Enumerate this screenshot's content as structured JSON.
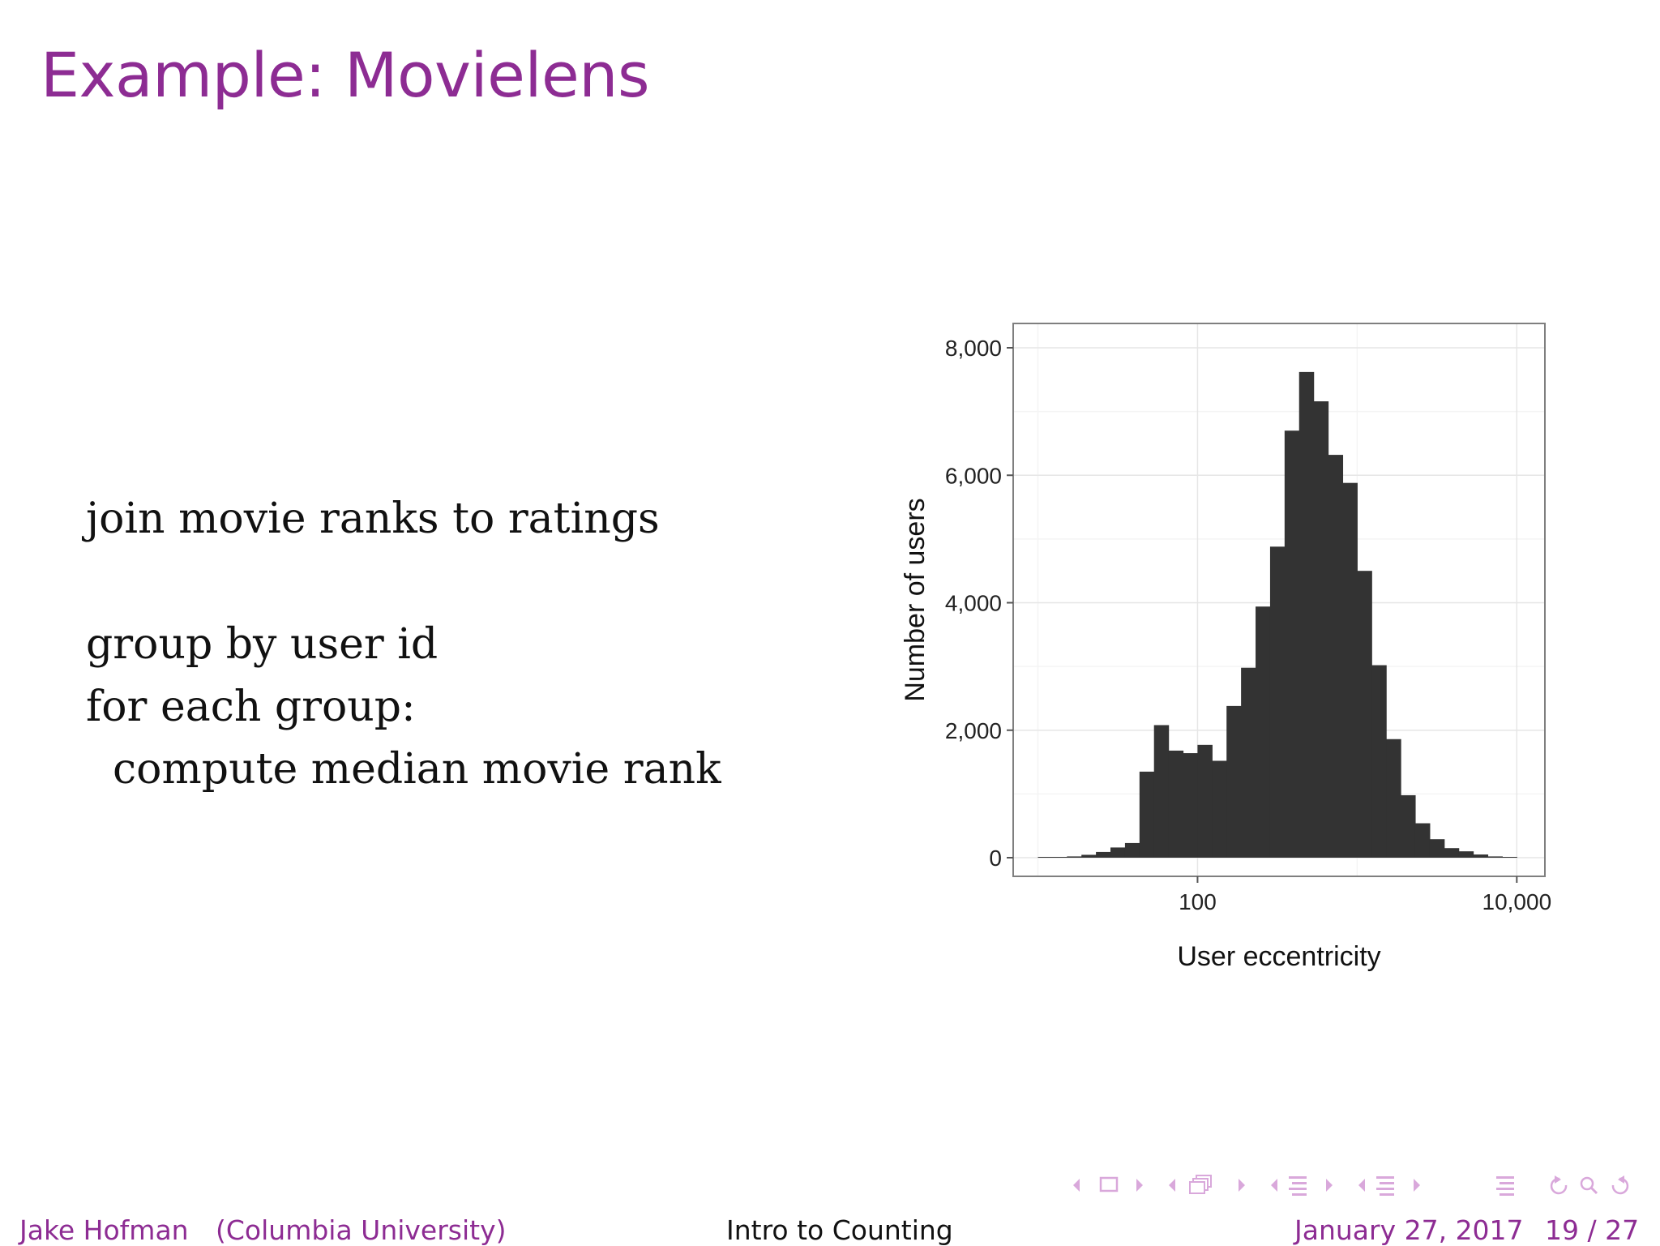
{
  "slide": {
    "title": "Example: Movielens"
  },
  "code_lines": [
    "join movie ranks to ratings",
    "group by user id",
    "for each group:",
    "  compute median movie rank"
  ],
  "chart_data": {
    "type": "bar",
    "xlabel": "User eccentricity",
    "ylabel": "Number of users",
    "x_scale": "log10",
    "xlim": [
      7,
      15000
    ],
    "ylim": [
      0,
      8000
    ],
    "x_ticks": [
      {
        "value": 100,
        "label": "100"
      },
      {
        "value": 10000,
        "label": "10,000"
      }
    ],
    "y_ticks": [
      {
        "value": 0,
        "label": "0"
      },
      {
        "value": 2000,
        "label": "2,000"
      },
      {
        "value": 4000,
        "label": "4,000"
      },
      {
        "value": 6000,
        "label": "6,000"
      },
      {
        "value": 8000,
        "label": "8,000"
      }
    ],
    "grid": true,
    "bar_color": "#333333",
    "bins": {
      "log10_start": 1.0,
      "log10_width": 0.0909,
      "values": [
        5,
        10,
        20,
        45,
        90,
        160,
        230,
        1350,
        2080,
        1680,
        1640,
        1770,
        1520,
        2380,
        2980,
        3940,
        4880,
        6700,
        7620,
        7160,
        6320,
        5880,
        4500,
        3020,
        1860,
        980,
        540,
        290,
        150,
        100,
        50,
        20,
        10
      ]
    }
  },
  "footer": {
    "author": "Jake Hofman",
    "affiliation": "(Columbia University)",
    "talk_title": "Intro to Counting",
    "date": "January 27, 2017",
    "page": "19 / 27"
  },
  "colors": {
    "accent": "#8d2c93",
    "nav": "#d9a8db"
  }
}
